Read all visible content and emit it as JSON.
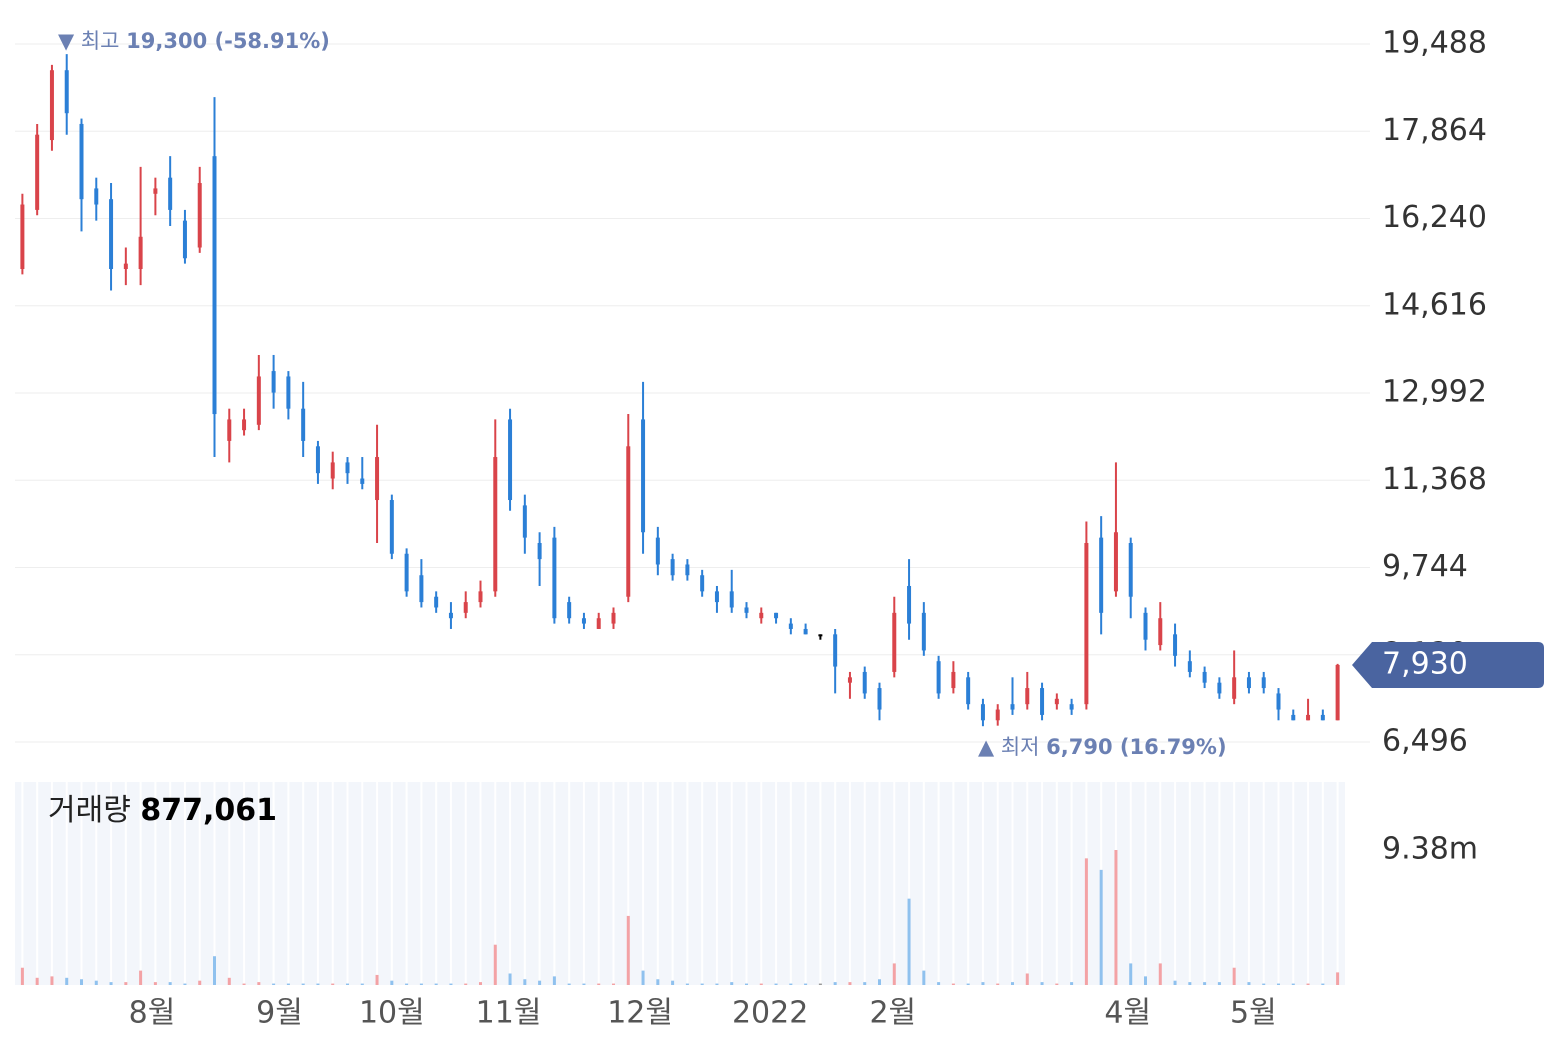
{
  "chart_data": {
    "type": "candlestick",
    "open": [
      15300,
      16400,
      17700,
      19000,
      18000,
      16800,
      16600,
      15300,
      15300,
      16700,
      17000,
      16200,
      15700,
      17400,
      12100,
      12300,
      12400,
      13400,
      13300,
      12700,
      12000,
      11400,
      11700,
      11400,
      11000,
      11000,
      10000,
      9600,
      9200,
      8900,
      8900,
      9100,
      9300,
      12500,
      10900,
      10200,
      10300,
      9100,
      8800,
      8600,
      8700,
      9200,
      12500,
      10300,
      9900,
      9800,
      9600,
      9300,
      9300,
      9000,
      8800,
      8900,
      8700,
      8600,
      8500,
      8500,
      7600,
      7800,
      7500,
      7800,
      9400,
      8900,
      8000,
      7500,
      7700,
      7200,
      6900,
      7200,
      7200,
      7500,
      7200,
      7200,
      7200,
      10300,
      9300,
      10200,
      8900,
      8300,
      8500,
      8000,
      7800,
      7600,
      7300,
      7700,
      7700,
      7400,
      7000,
      6900,
      7000,
      6900
    ],
    "high": [
      16700,
      18000,
      19100,
      19300,
      18100,
      17000,
      16900,
      15700,
      17200,
      17000,
      17400,
      16400,
      17200,
      18500,
      12700,
      12700,
      13700,
      13700,
      13400,
      13200,
      12100,
      11900,
      11800,
      11800,
      12400,
      11100,
      10100,
      9900,
      9300,
      9100,
      9300,
      9500,
      12500,
      12700,
      11100,
      10400,
      10500,
      9200,
      8900,
      8900,
      9000,
      12600,
      13200,
      10500,
      10000,
      9900,
      9700,
      9400,
      9700,
      9100,
      9000,
      8900,
      8800,
      8700,
      8500,
      8600,
      7800,
      7900,
      7600,
      9200,
      9900,
      9100,
      8100,
      8000,
      7800,
      7300,
      7200,
      7700,
      7800,
      7600,
      7400,
      7300,
      10600,
      10700,
      11700,
      10300,
      9000,
      9100,
      8700,
      8200,
      7900,
      7700,
      8200,
      7800,
      7800,
      7500,
      7100,
      7300,
      7100,
      7950
    ],
    "low": [
      15200,
      16300,
      17500,
      17800,
      16000,
      16200,
      14900,
      15000,
      15000,
      16300,
      16100,
      15400,
      15600,
      11800,
      11700,
      12200,
      12300,
      12700,
      12500,
      11800,
      11300,
      11200,
      11300,
      11200,
      10200,
      9900,
      9200,
      9000,
      8900,
      8600,
      8800,
      9000,
      9200,
      10800,
      10000,
      9400,
      8700,
      8700,
      8600,
      8600,
      8600,
      9100,
      10000,
      9600,
      9500,
      9500,
      9200,
      8900,
      8900,
      8800,
      8700,
      8700,
      8500,
      8500,
      8400,
      7400,
      7300,
      7300,
      6900,
      7700,
      8400,
      8100,
      7300,
      7400,
      7100,
      6790,
      6800,
      7000,
      7100,
      6900,
      7100,
      7000,
      7100,
      8500,
      9200,
      8800,
      8200,
      8200,
      7900,
      7700,
      7500,
      7300,
      7200,
      7400,
      7400,
      6900,
      6900,
      6900,
      6900,
      6900
    ],
    "close": [
      16500,
      17800,
      19000,
      18200,
      16600,
      16500,
      15300,
      15400,
      15900,
      16800,
      16400,
      15500,
      16900,
      12600,
      12500,
      12500,
      13300,
      13000,
      12700,
      12100,
      11500,
      11700,
      11500,
      11300,
      11800,
      10000,
      9300,
      9100,
      9000,
      8800,
      9100,
      9300,
      11800,
      11000,
      10300,
      9900,
      8800,
      8800,
      8700,
      8800,
      8900,
      12000,
      10400,
      9800,
      9600,
      9600,
      9300,
      9100,
      9000,
      8900,
      8900,
      8800,
      8600,
      8500,
      8500,
      7900,
      7700,
      7400,
      7100,
      8900,
      8700,
      8200,
      7400,
      7800,
      7200,
      6900,
      7100,
      7100,
      7500,
      7000,
      7300,
      7100,
      10200,
      8900,
      10400,
      9200,
      8400,
      8800,
      8100,
      7800,
      7600,
      7400,
      7700,
      7500,
      7500,
      7100,
      6900,
      7000,
      6900,
      7930
    ],
    "volume": [
      1200000,
      500000,
      600000,
      500000,
      400000,
      300000,
      200000,
      200000,
      1000000,
      200000,
      200000,
      100000,
      300000,
      2000000,
      500000,
      100000,
      200000,
      100000,
      100000,
      100000,
      100000,
      100000,
      100000,
      100000,
      700000,
      300000,
      100000,
      100000,
      100000,
      100000,
      100000,
      200000,
      2800000,
      800000,
      400000,
      300000,
      600000,
      100000,
      100000,
      100000,
      100000,
      4800000,
      1000000,
      400000,
      300000,
      100000,
      100000,
      100000,
      200000,
      100000,
      100000,
      100000,
      100000,
      100000,
      100000,
      200000,
      200000,
      200000,
      400000,
      1500000,
      6000000,
      1000000,
      200000,
      100000,
      100000,
      200000,
      100000,
      200000,
      800000,
      200000,
      100000,
      200000,
      8800000,
      8000000,
      9380000,
      1500000,
      600000,
      1500000,
      300000,
      200000,
      200000,
      200000,
      1200000,
      200000,
      100000,
      100000,
      100000,
      100000,
      100000,
      877061
    ],
    "ylim": [
      6496,
      19488
    ],
    "yticks": [
      {
        "value": 19488,
        "label": "19,488"
      },
      {
        "value": 17864,
        "label": "17,864"
      },
      {
        "value": 16240,
        "label": "16,240"
      },
      {
        "value": 14616,
        "label": "14,616"
      },
      {
        "value": 12992,
        "label": "12,992"
      },
      {
        "value": 11368,
        "label": "11,368"
      },
      {
        "value": 9744,
        "label": "9,744"
      },
      {
        "value": 8120,
        "label": "8,120"
      },
      {
        "value": 6496,
        "label": "6,496"
      }
    ],
    "volume_ylim": [
      0,
      9380000
    ],
    "volume_yticks": [
      {
        "value": 9380000,
        "label": "9.38m"
      }
    ],
    "xticks": [
      {
        "value": 9.27,
        "label": "8월"
      },
      {
        "value": 17.9,
        "label": "9월"
      },
      {
        "value": 25.5,
        "label": "10월"
      },
      {
        "value": 33.4,
        "label": "11월"
      },
      {
        "value": 42.3,
        "label": "12월"
      },
      {
        "value": 51.1,
        "label": "2022"
      },
      {
        "value": 59.4,
        "label": "2월"
      },
      {
        "value": 75.3,
        "label": "4월"
      },
      {
        "value": 83.8,
        "label": "5월"
      }
    ],
    "high_marker": {
      "label": "▼ 최고",
      "value": "19,300 (-58.91%)"
    },
    "low_marker": {
      "label": "▲ 최저",
      "value": "6,790 (16.79%)"
    },
    "volume_title": "거래량",
    "current_volume_label": "877,061",
    "current_price_label": "7,930",
    "up_color": "#d9444a",
    "down_color": "#2b7fd6",
    "up_volume_color": "#f3a2a5",
    "down_volume_color": "#8fc1ee",
    "grid": true
  }
}
